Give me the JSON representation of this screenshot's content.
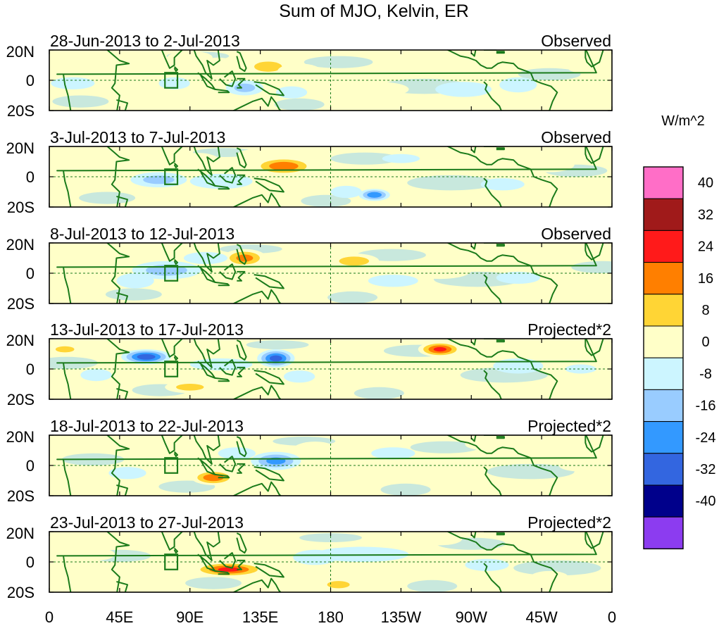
{
  "chart_data": {
    "type": "heatmap",
    "title": "Sum of MJO, Kelvin, ER",
    "colorbar": {
      "unit": "W/m^2",
      "levels": [
        "40",
        "32",
        "24",
        "16",
        "8",
        "0",
        "-8",
        "-16",
        "-24",
        "-32",
        "-40"
      ],
      "colors": [
        "#ff6ec7",
        "#a01a1a",
        "#ff1a1a",
        "#ff7f00",
        "#ffd535",
        "#ffffc8",
        "#ccf5ff",
        "#99ccff",
        "#3399ff",
        "#3366e0",
        "#00008b",
        "#8c3cf0"
      ]
    },
    "x_ticks": [
      "0",
      "45E",
      "90E",
      "135E",
      "180",
      "135W",
      "90W",
      "45W",
      "0"
    ],
    "y_ticks": [
      "20N",
      "0",
      "20S"
    ],
    "panels": [
      {
        "period": "28-Jun-2013 to 2-Jul-2013",
        "tag": "Observed",
        "blobs": [
          [
            140,
            9,
            16,
            6,
            18
          ],
          [
            108,
            10,
            12,
            5,
            14
          ],
          [
            35,
            3,
            10,
            4,
            10
          ],
          [
            160,
            6,
            14,
            5,
            12
          ],
          [
            -20,
            8,
            8,
            3,
            14
          ],
          [
            -45,
            14,
            14,
            4,
            12
          ],
          [
            15,
            -2,
            14,
            4,
            -14
          ],
          [
            80,
            -2,
            10,
            4,
            -12
          ],
          [
            125,
            -5,
            12,
            5,
            -18
          ],
          [
            155,
            -8,
            10,
            4,
            -10
          ],
          [
            -95,
            -6,
            18,
            5,
            -8
          ],
          [
            -60,
            -3,
            12,
            5,
            -10
          ],
          [
            -150,
            -6,
            20,
            5,
            8
          ],
          [
            90,
            15,
            10,
            3,
            6
          ],
          [
            55,
            5,
            10,
            4,
            8
          ]
        ]
      },
      {
        "period": "3-Jul-2013 to 7-Jul-2013",
        "tag": "Observed",
        "blobs": [
          [
            150,
            7,
            20,
            6,
            30
          ],
          [
            -152,
            -12,
            10,
            4,
            -30
          ],
          [
            -40,
            8,
            16,
            5,
            14
          ],
          [
            -110,
            10,
            12,
            3,
            12
          ],
          [
            40,
            5,
            8,
            3,
            12
          ],
          [
            70,
            -2,
            18,
            5,
            -18
          ],
          [
            110,
            -3,
            20,
            5,
            -10
          ],
          [
            -70,
            -5,
            14,
            4,
            -10
          ],
          [
            -135,
            12,
            12,
            3,
            -8
          ],
          [
            -170,
            -10,
            10,
            4,
            -10
          ],
          [
            130,
            14,
            10,
            4,
            8
          ],
          [
            95,
            10,
            10,
            4,
            6
          ],
          [
            20,
            10,
            10,
            4,
            6
          ]
        ]
      },
      {
        "period": "8-Jul-2013 to 12-Jul-2013",
        "tag": "Observed",
        "blobs": [
          [
            125,
            10,
            14,
            6,
            26
          ],
          [
            -165,
            8,
            16,
            5,
            20
          ],
          [
            75,
            2,
            22,
            6,
            -20
          ],
          [
            100,
            10,
            14,
            4,
            -14
          ],
          [
            55,
            -5,
            12,
            5,
            -14
          ],
          [
            115,
            -10,
            14,
            4,
            14
          ],
          [
            140,
            -5,
            12,
            4,
            12
          ],
          [
            -80,
            10,
            14,
            5,
            10
          ],
          [
            -140,
            -5,
            16,
            4,
            -8
          ],
          [
            -60,
            -3,
            14,
            4,
            -8
          ],
          [
            -20,
            12,
            14,
            4,
            10
          ],
          [
            25,
            10,
            10,
            4,
            6
          ],
          [
            160,
            -12,
            10,
            4,
            6
          ],
          [
            -110,
            2,
            14,
            4,
            6
          ]
        ]
      },
      {
        "period": "13-Jul-2013 to 17-Jul-2013",
        "tag": "Projected*2",
        "blobs": [
          [
            -110,
            13,
            14,
            5,
            34
          ],
          [
            62,
            8,
            16,
            5,
            -38
          ],
          [
            145,
            7,
            12,
            6,
            -36
          ],
          [
            110,
            3,
            20,
            4,
            -12
          ],
          [
            10,
            13,
            12,
            4,
            16
          ],
          [
            100,
            13,
            14,
            5,
            14
          ],
          [
            175,
            12,
            12,
            4,
            12
          ],
          [
            90,
            -12,
            16,
            4,
            18
          ],
          [
            -140,
            -8,
            14,
            4,
            12
          ],
          [
            -60,
            2,
            16,
            5,
            -10
          ],
          [
            30,
            -4,
            10,
            4,
            -12
          ],
          [
            -20,
            0,
            10,
            3,
            -10
          ],
          [
            160,
            -5,
            10,
            4,
            -14
          ],
          [
            -30,
            12,
            12,
            4,
            10
          ],
          [
            -160,
            8,
            12,
            4,
            8
          ]
        ]
      },
      {
        "period": "18-Jul-2013 to 22-Jul-2013",
        "tag": "Projected*2",
        "blobs": [
          [
            105,
            -8,
            14,
            5,
            30
          ],
          [
            145,
            3,
            16,
            6,
            -26
          ],
          [
            120,
            8,
            12,
            4,
            -14
          ],
          [
            -170,
            -8,
            12,
            4,
            14
          ],
          [
            -80,
            14,
            14,
            4,
            14
          ],
          [
            -20,
            0,
            14,
            4,
            10
          ],
          [
            50,
            -5,
            12,
            4,
            -10
          ],
          [
            -140,
            8,
            14,
            4,
            -8
          ],
          [
            15,
            -8,
            12,
            4,
            8
          ],
          [
            170,
            10,
            10,
            4,
            6
          ],
          [
            -100,
            -8,
            14,
            4,
            8
          ],
          [
            75,
            10,
            10,
            4,
            6
          ]
        ]
      },
      {
        "period": "23-Jul-2013 to 27-Jul-2013",
        "tag": "Projected*2",
        "blobs": [
          [
            115,
            -5,
            24,
            5,
            34
          ],
          [
            -175,
            -15,
            12,
            4,
            20
          ],
          [
            -160,
            5,
            30,
            5,
            -12
          ],
          [
            170,
            3,
            14,
            5,
            -14
          ],
          [
            30,
            5,
            12,
            4,
            12
          ],
          [
            -110,
            15,
            14,
            4,
            10
          ],
          [
            -80,
            -2,
            14,
            4,
            -10
          ],
          [
            -40,
            -10,
            12,
            4,
            8
          ],
          [
            60,
            -3,
            12,
            4,
            8
          ],
          [
            15,
            -10,
            10,
            4,
            6
          ],
          [
            130,
            12,
            12,
            4,
            8
          ],
          [
            95,
            10,
            10,
            3,
            6
          ]
        ]
      }
    ],
    "land_outlines": [
      [
        [
          -17,
          21
        ],
        [
          -10,
          5
        ],
        [
          5,
          4
        ],
        [
          9,
          4
        ],
        [
          10,
          -3
        ],
        [
          12,
          -10
        ],
        [
          14,
          -22
        ],
        [
          43,
          -22
        ],
        [
          45,
          -10
        ],
        [
          40,
          -5
        ],
        [
          42,
          -2
        ],
        [
          43,
          10
        ],
        [
          51,
          11
        ],
        [
          45,
          13
        ],
        [
          36,
          21
        ]
      ],
      [
        [
          43,
          -13
        ],
        [
          50,
          -15
        ],
        [
          48,
          -22
        ],
        [
          44,
          -22
        ]
      ],
      [
        [
          68,
          23
        ],
        [
          72,
          20
        ],
        [
          74,
          15
        ],
        [
          77,
          8
        ],
        [
          80,
          10
        ],
        [
          80,
          15
        ],
        [
          86,
          21
        ],
        [
          92,
          22
        ],
        [
          94,
          16
        ],
        [
          98,
          10
        ],
        [
          100,
          5
        ],
        [
          104,
          1
        ],
        [
          103,
          5
        ],
        [
          101,
          13
        ],
        [
          105,
          10
        ],
        [
          109,
          13
        ],
        [
          108,
          20
        ],
        [
          111,
          22
        ],
        [
          118,
          23
        ]
      ],
      [
        [
          80,
          9
        ],
        [
          82,
          7
        ],
        [
          81,
          6
        ],
        [
          80,
          8
        ]
      ],
      [
        [
          95,
          5
        ],
        [
          100,
          1
        ],
        [
          104,
          -3
        ],
        [
          106,
          -6
        ],
        [
          101,
          -4
        ],
        [
          97,
          3
        ]
      ],
      [
        [
          106,
          -6
        ],
        [
          114,
          -7
        ],
        [
          115,
          -8
        ],
        [
          108,
          -8
        ]
      ],
      [
        [
          109,
          1
        ],
        [
          113,
          -3
        ],
        [
          117,
          -4
        ],
        [
          119,
          1
        ],
        [
          117,
          6
        ],
        [
          112,
          2
        ]
      ],
      [
        [
          120,
          1
        ],
        [
          125,
          1
        ],
        [
          121,
          -3
        ],
        [
          123,
          -5
        ],
        [
          120,
          -5
        ]
      ],
      [
        [
          120,
          19
        ],
        [
          122,
          18
        ],
        [
          124,
          13
        ],
        [
          126,
          8
        ],
        [
          125,
          6
        ],
        [
          122,
          8
        ],
        [
          121,
          12
        ],
        [
          120,
          16
        ]
      ],
      [
        [
          131,
          -1
        ],
        [
          138,
          -2
        ],
        [
          147,
          -6
        ],
        [
          150,
          -10
        ],
        [
          141,
          -9
        ],
        [
          138,
          -7
        ],
        [
          132,
          -3
        ]
      ],
      [
        [
          114,
          -22
        ],
        [
          118,
          -20
        ],
        [
          122,
          -18
        ],
        [
          130,
          -14
        ],
        [
          136,
          -12
        ],
        [
          140,
          -17
        ],
        [
          142,
          -11
        ],
        [
          145,
          -15
        ],
        [
          147,
          -19
        ],
        [
          150,
          -22
        ]
      ],
      [
        [
          -122,
          22
        ],
        [
          -117,
          22
        ],
        [
          -110,
          23
        ],
        [
          -105,
          20
        ],
        [
          -97,
          16
        ],
        [
          -92,
          15
        ],
        [
          -87,
          13
        ],
        [
          -84,
          10
        ],
        [
          -80,
          8
        ],
        [
          -77,
          8
        ],
        [
          -73,
          11
        ],
        [
          -70,
          12
        ],
        [
          -63,
          11
        ],
        [
          -60,
          8
        ],
        [
          -52,
          5
        ],
        [
          -50,
          0
        ],
        [
          -45,
          -2
        ],
        [
          -39,
          -4
        ],
        [
          -35,
          -8
        ],
        [
          -38,
          -14
        ],
        [
          -40,
          -20
        ],
        [
          -41,
          -22
        ]
      ],
      [
        [
          -82,
          -1
        ],
        [
          -80,
          -3
        ],
        [
          -81,
          -6
        ],
        [
          -77,
          -12
        ],
        [
          -72,
          -17
        ],
        [
          -70,
          -22
        ]
      ],
      [
        [
          -90,
          21
        ],
        [
          -87,
          21
        ],
        [
          -88,
          16
        ],
        [
          -90,
          18
        ]
      ],
      [
        [
          -85,
          22
        ],
        [
          -78,
          22
        ],
        [
          -74,
          20
        ],
        [
          -82,
          20
        ]
      ],
      [
        [
          -74,
          19
        ],
        [
          -69,
          19
        ],
        [
          -69,
          18
        ],
        [
          -74,
          18
        ]
      ],
      [
        [
          -5,
          22
        ],
        [
          -8,
          12
        ],
        [
          -13,
          9
        ],
        [
          -16,
          12
        ],
        [
          -17,
          15
        ],
        [
          -17,
          21
        ]
      ]
    ],
    "annotations": [
      "box at 75E-82E, 5N-5S"
    ]
  }
}
